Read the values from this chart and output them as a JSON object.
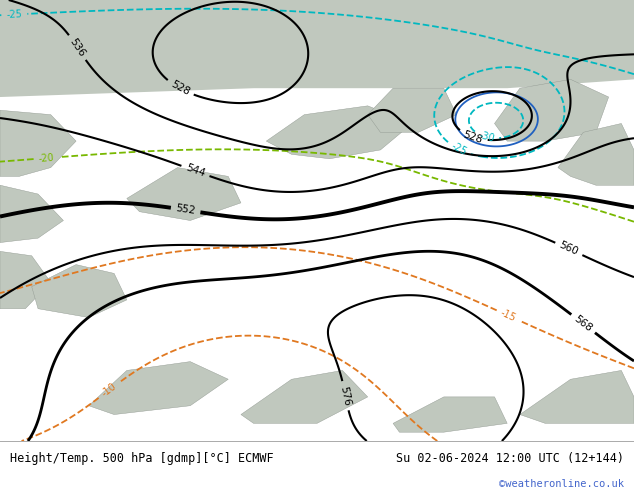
{
  "title_left": "Height/Temp. 500 hPa [gdmp][°C] ECMWF",
  "title_right": "Su 02-06-2024 12:00 UTC (12+144)",
  "watermark": "©weatheronline.co.uk",
  "land_color": "#a8d888",
  "gray_color": "#c0c8be",
  "height_contour_color": "#000000",
  "temp_warm_color": "#e07820",
  "temp_cold_color_1": "#00b8c0",
  "temp_cold_color_2": "#2060c0",
  "temp_green_color": "#78b800",
  "bottom_bar_color": "#ffffff",
  "title_color": "#000000",
  "watermark_color": "#4466cc",
  "fig_width": 6.34,
  "fig_height": 4.9,
  "dpi": 100
}
